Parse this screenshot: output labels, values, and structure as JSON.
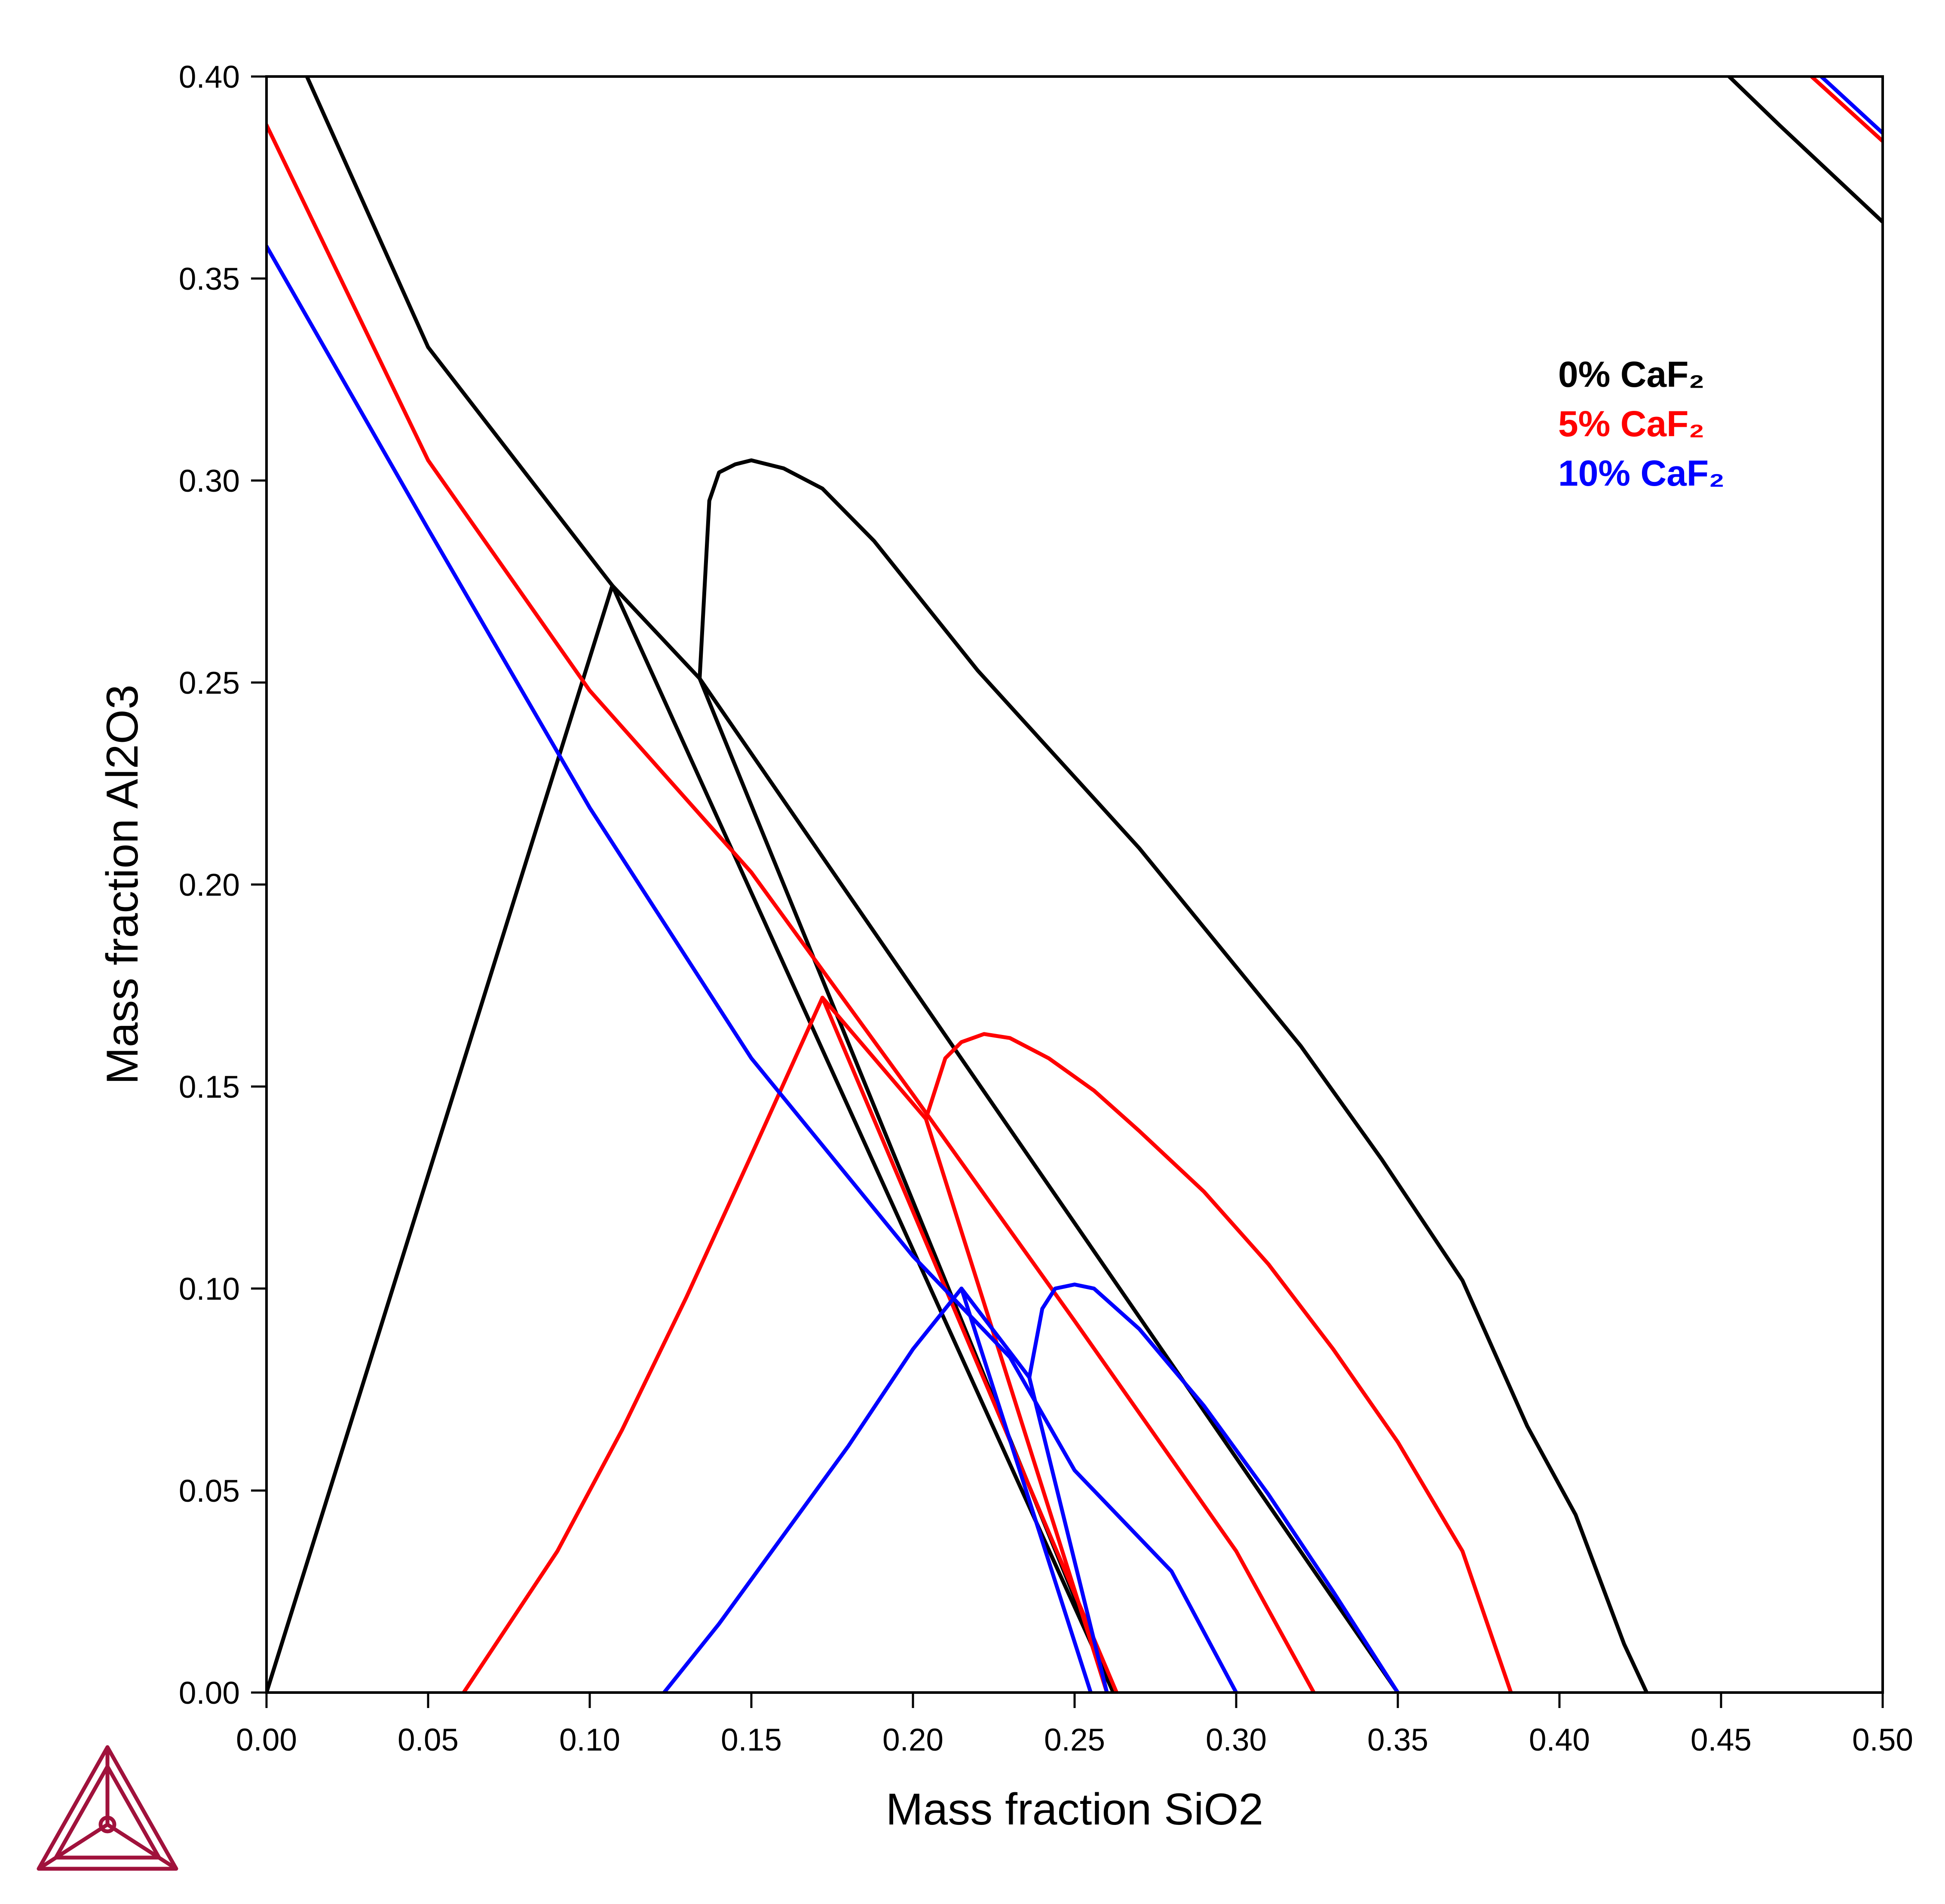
{
  "chart_data": {
    "type": "line",
    "title": "",
    "xlabel": "Mass fraction SiO2",
    "ylabel": "Mass fraction Al2O3",
    "xlim": [
      0.0,
      0.5
    ],
    "ylim": [
      0.0,
      0.4
    ],
    "x_ticks": [
      "0.00",
      "0.05",
      "0.10",
      "0.15",
      "0.20",
      "0.25",
      "0.30",
      "0.35",
      "0.40",
      "0.45",
      "0.50"
    ],
    "y_ticks": [
      "0.00",
      "0.05",
      "0.10",
      "0.15",
      "0.20",
      "0.25",
      "0.30",
      "0.35",
      "0.40"
    ],
    "x_tick_values": [
      0.0,
      0.05,
      0.1,
      0.15,
      0.2,
      0.25,
      0.3,
      0.35,
      0.4,
      0.45,
      0.5
    ],
    "y_tick_values": [
      0.0,
      0.05,
      0.1,
      0.15,
      0.2,
      0.25,
      0.3,
      0.35,
      0.4
    ],
    "grid": false,
    "legend_position": "top-right",
    "legend": [
      {
        "label": "0% CaF₂",
        "color": "#000000"
      },
      {
        "label": "5% CaF₂",
        "color": "#ff0000"
      },
      {
        "label": "10% CaF₂",
        "color": "#0000ff"
      }
    ],
    "series": [
      {
        "color": "#000000",
        "points": [
          [
            0.0,
            0.0
          ],
          [
            0.107,
            0.274
          ],
          [
            0.262,
            0.0
          ]
        ]
      },
      {
        "color": "#000000",
        "points": [
          [
            0.107,
            0.274
          ],
          [
            0.134,
            0.251
          ],
          [
            0.35,
            0.0
          ]
        ]
      },
      {
        "color": "#000000",
        "points": [
          [
            0.0125,
            0.4
          ],
          [
            0.05,
            0.333
          ],
          [
            0.107,
            0.274
          ]
        ]
      },
      {
        "color": "#000000",
        "points": [
          [
            0.134,
            0.251
          ],
          [
            0.137,
            0.295
          ],
          [
            0.14,
            0.302
          ],
          [
            0.145,
            0.304
          ],
          [
            0.15,
            0.305
          ],
          [
            0.16,
            0.303
          ],
          [
            0.172,
            0.298
          ],
          [
            0.188,
            0.285
          ],
          [
            0.22,
            0.253
          ],
          [
            0.27,
            0.209
          ],
          [
            0.32,
            0.16
          ],
          [
            0.345,
            0.132
          ],
          [
            0.37,
            0.102
          ],
          [
            0.39,
            0.066
          ],
          [
            0.405,
            0.044
          ],
          [
            0.42,
            0.012
          ],
          [
            0.427,
            0.0
          ]
        ]
      },
      {
        "color": "#000000",
        "points": [
          [
            0.134,
            0.251
          ],
          [
            0.262,
            0.0
          ]
        ]
      },
      {
        "color": "#000000",
        "points": [
          [
            0.4525,
            0.4
          ],
          [
            0.468,
            0.388
          ],
          [
            0.5,
            0.364
          ]
        ]
      },
      {
        "color": "#ff0000",
        "points": [
          [
            0.0,
            0.388
          ],
          [
            0.05,
            0.305
          ],
          [
            0.1,
            0.248
          ],
          [
            0.15,
            0.203
          ],
          [
            0.2,
            0.148
          ],
          [
            0.25,
            0.092
          ],
          [
            0.3,
            0.035
          ],
          [
            0.324,
            0.0
          ]
        ]
      },
      {
        "color": "#ff0000",
        "points": [
          [
            0.061,
            0.0
          ],
          [
            0.09,
            0.035
          ],
          [
            0.11,
            0.065
          ],
          [
            0.13,
            0.098
          ],
          [
            0.15,
            0.133
          ],
          [
            0.172,
            0.172
          ],
          [
            0.263,
            0.0
          ]
        ]
      },
      {
        "color": "#ff0000",
        "points": [
          [
            0.172,
            0.172
          ],
          [
            0.204,
            0.142
          ],
          [
            0.26,
            0.0
          ]
        ]
      },
      {
        "color": "#ff0000",
        "points": [
          [
            0.204,
            0.142
          ],
          [
            0.21,
            0.157
          ],
          [
            0.215,
            0.161
          ],
          [
            0.222,
            0.163
          ],
          [
            0.23,
            0.162
          ],
          [
            0.242,
            0.157
          ],
          [
            0.256,
            0.149
          ],
          [
            0.27,
            0.139
          ],
          [
            0.29,
            0.124
          ],
          [
            0.31,
            0.106
          ],
          [
            0.33,
            0.085
          ],
          [
            0.35,
            0.062
          ],
          [
            0.37,
            0.035
          ],
          [
            0.385,
            0.0
          ]
        ]
      },
      {
        "color": "#ff0000",
        "points": [
          [
            0.478,
            0.4
          ],
          [
            0.5,
            0.384
          ]
        ]
      },
      {
        "color": "#0000ff",
        "points": [
          [
            0.0,
            0.358
          ],
          [
            0.05,
            0.288
          ],
          [
            0.1,
            0.219
          ],
          [
            0.15,
            0.157
          ],
          [
            0.2,
            0.108
          ],
          [
            0.23,
            0.083
          ],
          [
            0.25,
            0.055
          ],
          [
            0.28,
            0.03
          ],
          [
            0.3,
            0.0
          ]
        ]
      },
      {
        "color": "#0000ff",
        "points": [
          [
            0.123,
            0.0
          ],
          [
            0.14,
            0.017
          ],
          [
            0.16,
            0.039
          ],
          [
            0.18,
            0.061
          ],
          [
            0.2,
            0.085
          ],
          [
            0.215,
            0.1
          ],
          [
            0.255,
            0.0
          ]
        ]
      },
      {
        "color": "#0000ff",
        "points": [
          [
            0.215,
            0.1
          ],
          [
            0.236,
            0.078
          ],
          [
            0.26,
            0.0
          ]
        ]
      },
      {
        "color": "#0000ff",
        "points": [
          [
            0.236,
            0.078
          ],
          [
            0.24,
            0.095
          ],
          [
            0.244,
            0.1
          ],
          [
            0.25,
            0.101
          ],
          [
            0.256,
            0.1
          ],
          [
            0.27,
            0.09
          ],
          [
            0.29,
            0.071
          ],
          [
            0.31,
            0.049
          ],
          [
            0.33,
            0.025
          ],
          [
            0.35,
            0.0
          ]
        ]
      },
      {
        "color": "#0000ff",
        "points": [
          [
            0.481,
            0.4
          ],
          [
            0.5,
            0.386
          ]
        ]
      }
    ]
  },
  "logo": {
    "name": "thermo-calc-logo",
    "color": "#a0123c"
  }
}
